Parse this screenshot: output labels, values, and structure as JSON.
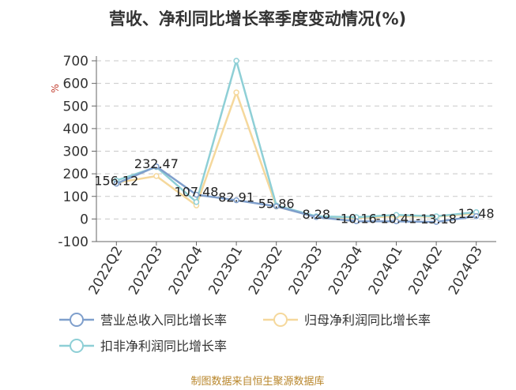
{
  "chart_data": {
    "type": "line",
    "title": "营收、净利同比增长率季度变动情况(%)",
    "ylabel": "%",
    "ylim": [
      -100,
      700
    ],
    "yticks": [
      -100,
      0,
      100,
      200,
      300,
      400,
      500,
      600,
      700
    ],
    "grid": true,
    "legend_position": "bottom",
    "categories": [
      "2022Q2",
      "2022Q3",
      "2022Q4",
      "2023Q1",
      "2023Q2",
      "2023Q3",
      "2023Q4",
      "2024Q1",
      "2024Q2",
      "2024Q3"
    ],
    "series": [
      {
        "name": "营业总收入同比增长率",
        "color": "#7f9fcc",
        "values": [
          156.12,
          232.47,
          107.48,
          82.91,
          55.86,
          8.28,
          -10.16,
          -10.41,
          -13.18,
          12.48
        ],
        "labels": [
          "156.12",
          "232.47",
          "107.48",
          "82.91",
          "55.86",
          "8.28",
          "-10.16",
          "-10.41",
          "-13.18",
          "12.48"
        ]
      },
      {
        "name": "归母净利润同比增长率",
        "color": "#f5d89c",
        "values": [
          160,
          190,
          60,
          560,
          55,
          10,
          5,
          12,
          10,
          25
        ]
      },
      {
        "name": "扣非净利润同比增长率",
        "color": "#8ecfd6",
        "values": [
          170,
          230,
          75,
          700,
          60,
          12,
          8,
          18,
          12,
          30
        ]
      }
    ]
  },
  "source_text": "制图数据来自恒生聚源数据库"
}
